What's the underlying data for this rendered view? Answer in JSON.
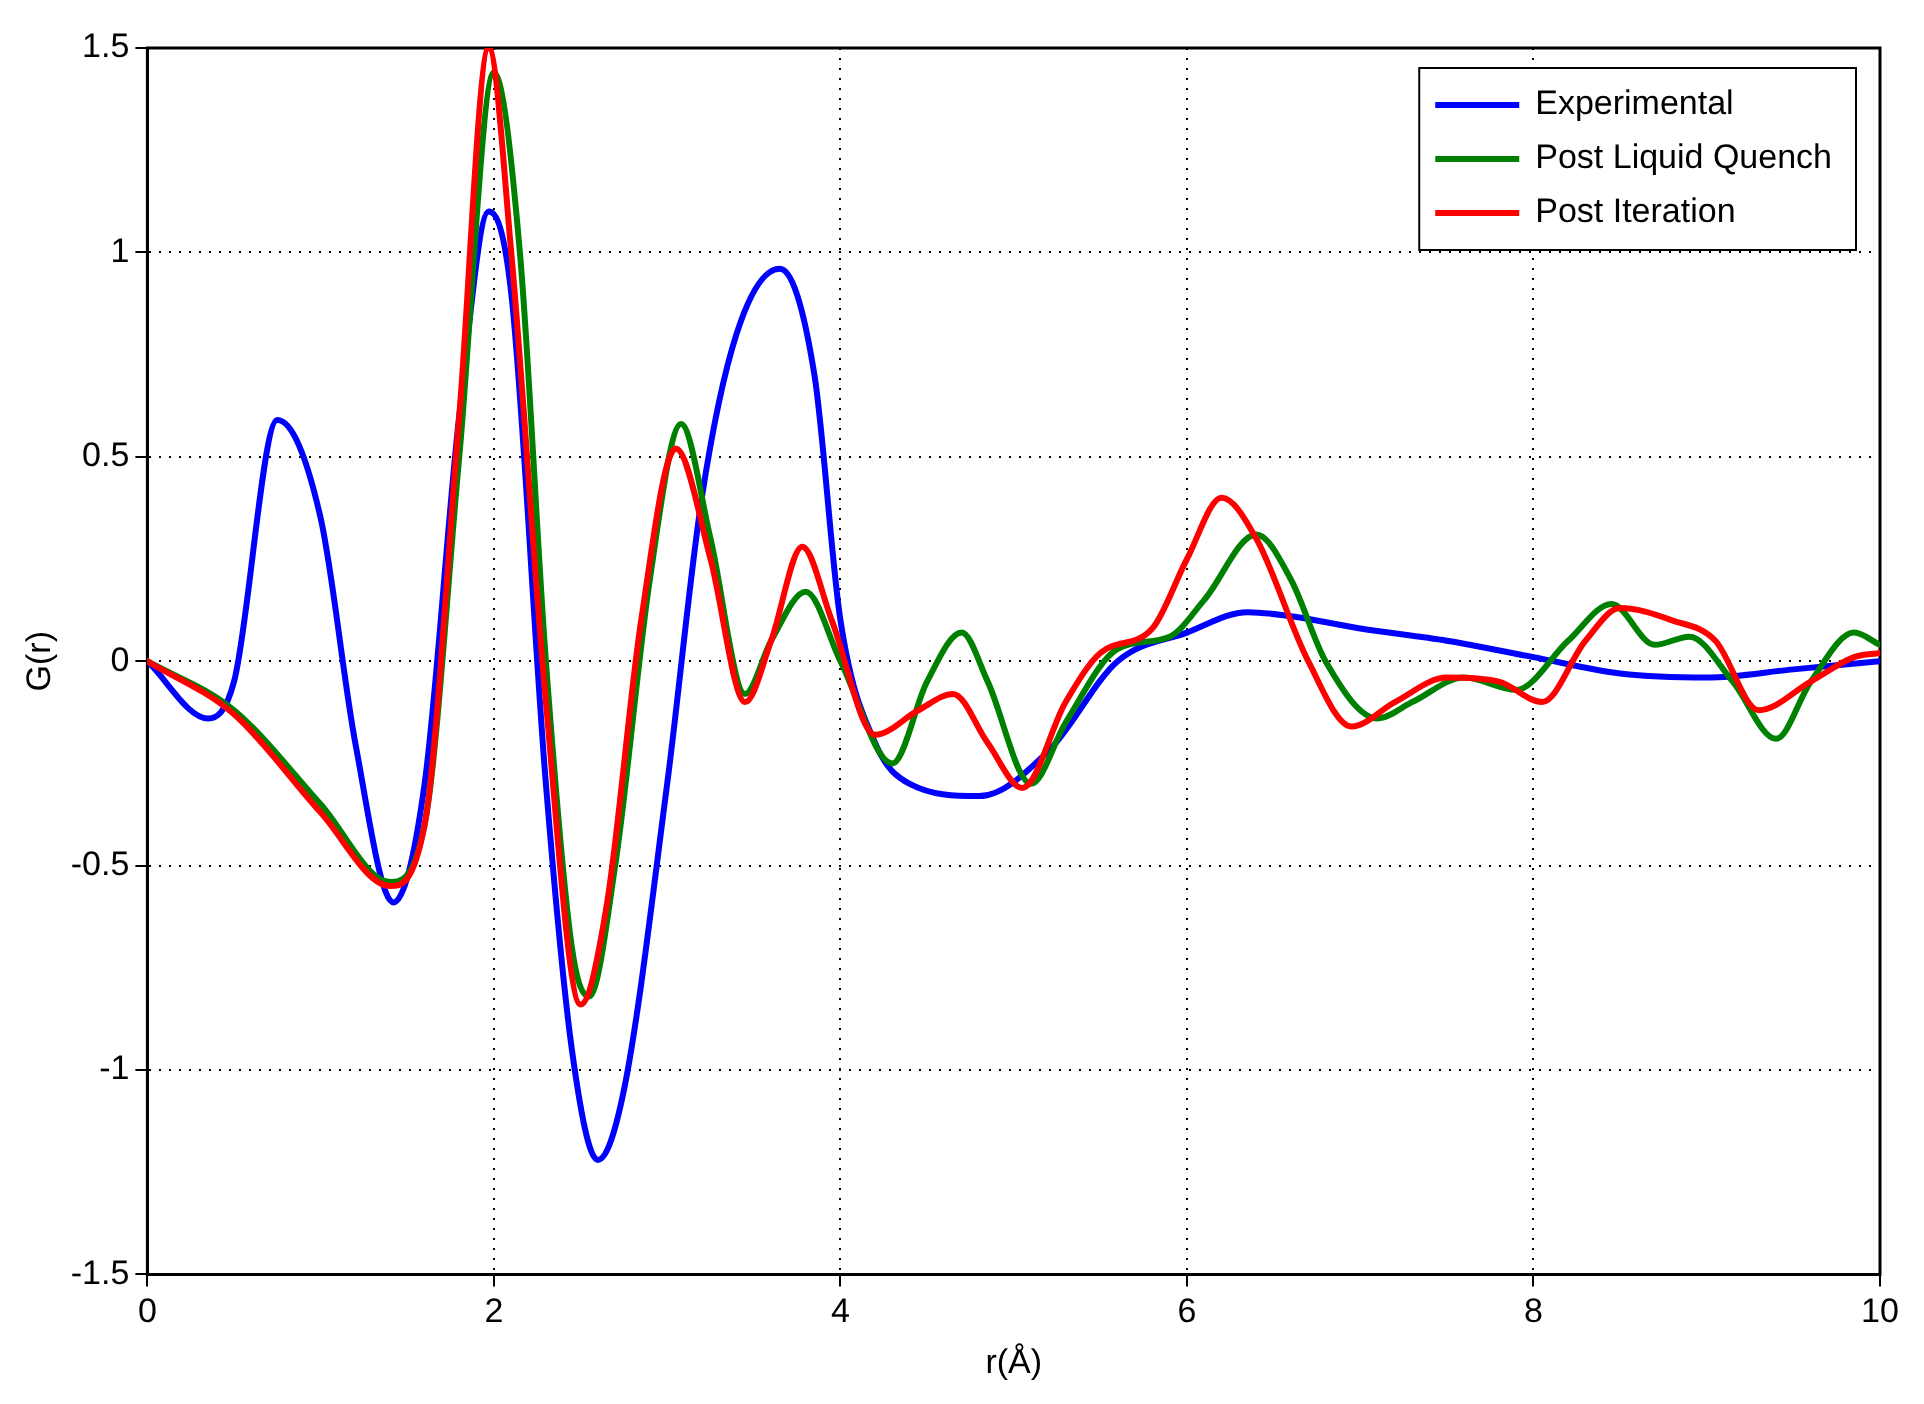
{
  "chart_data": {
    "type": "line",
    "xlabel": "r(Å)",
    "ylabel": "G(r)",
    "xlim": [
      0,
      10
    ],
    "xticks": [
      0,
      2,
      4,
      6,
      8,
      10
    ],
    "ylim": [
      -1.5,
      1.5
    ],
    "yticks": [
      -1.5,
      -1,
      -0.5,
      0,
      0.5,
      1,
      1.5
    ],
    "grid": true,
    "legend": "top right",
    "marker": "none",
    "line_style": "solid",
    "series": [
      {
        "name": "Experimental",
        "color": "#0000ff",
        "x": [
          0,
          0.35,
          0.5,
          0.75,
          1.0,
          1.2,
          1.42,
          1.6,
          1.8,
          1.97,
          2.1,
          2.3,
          2.45,
          2.6,
          2.75,
          3.0,
          3.2,
          3.4,
          3.65,
          3.85,
          4.0,
          4.2,
          4.4,
          4.8,
          5.2,
          5.6,
          6.0,
          6.35,
          6.6,
          7,
          7.5,
          8,
          8.5,
          9,
          9.5,
          10
        ],
        "values": [
          0,
          -0.14,
          -0.05,
          0.59,
          0.35,
          -0.2,
          -0.59,
          -0.3,
          0.6,
          1.1,
          0.9,
          -0.3,
          -0.95,
          -1.22,
          -1.05,
          -0.3,
          0.4,
          0.8,
          0.96,
          0.7,
          0.1,
          -0.2,
          -0.3,
          -0.33,
          -0.22,
          0.0,
          0.07,
          0.12,
          0.11,
          0.08,
          0.05,
          0.01,
          -0.03,
          -0.04,
          -0.02,
          0
        ]
      },
      {
        "name": "Post Liquid Quench",
        "color": "#008000",
        "x": [
          0,
          0.5,
          1,
          1.4,
          1.6,
          1.8,
          2.0,
          2.15,
          2.3,
          2.45,
          2.55,
          2.7,
          2.9,
          3.08,
          3.25,
          3.45,
          3.6,
          3.8,
          4.0,
          4.3,
          4.5,
          4.7,
          4.85,
          5.1,
          5.3,
          5.6,
          5.9,
          6.1,
          6.4,
          6.6,
          6.8,
          7.1,
          7.3,
          7.6,
          7.9,
          8.2,
          8.45,
          8.7,
          8.9,
          9.15,
          9.4,
          9.6,
          9.85,
          10
        ],
        "values": [
          0,
          -0.12,
          -0.35,
          -0.54,
          -0.4,
          0.5,
          1.44,
          1.0,
          0,
          -0.7,
          -0.82,
          -0.5,
          0.2,
          0.58,
          0.3,
          -0.08,
          0.05,
          0.17,
          0.0,
          -0.25,
          -0.05,
          0.07,
          -0.05,
          -0.3,
          -0.15,
          0.03,
          0.06,
          0.15,
          0.31,
          0.2,
          0,
          -0.14,
          -0.1,
          -0.04,
          -0.07,
          0.05,
          0.14,
          0.04,
          0.06,
          -0.05,
          -0.19,
          -0.05,
          0.07,
          0.04
        ]
      },
      {
        "name": "Post Iteration",
        "color": "#ff0000",
        "x": [
          0,
          0.5,
          1,
          1.4,
          1.6,
          1.8,
          1.97,
          2.1,
          2.3,
          2.5,
          2.65,
          2.85,
          3.05,
          3.25,
          3.45,
          3.6,
          3.78,
          3.95,
          4.2,
          4.45,
          4.65,
          4.85,
          5.05,
          5.3,
          5.5,
          5.8,
          6.0,
          6.2,
          6.4,
          6.7,
          6.95,
          7.2,
          7.5,
          7.8,
          8.05,
          8.3,
          8.5,
          8.8,
          9.05,
          9.3,
          9.6,
          9.85,
          10
        ],
        "values": [
          0,
          -0.13,
          -0.37,
          -0.55,
          -0.4,
          0.6,
          1.5,
          1.0,
          -0.1,
          -0.84,
          -0.6,
          0.1,
          0.52,
          0.25,
          -0.1,
          0.05,
          0.28,
          0.1,
          -0.18,
          -0.12,
          -0.08,
          -0.2,
          -0.31,
          -0.1,
          0.02,
          0.08,
          0.25,
          0.4,
          0.3,
          0,
          -0.16,
          -0.1,
          -0.04,
          -0.05,
          -0.1,
          0.05,
          0.13,
          0.1,
          0.05,
          -0.12,
          -0.05,
          0.01,
          0.02
        ]
      }
    ]
  }
}
